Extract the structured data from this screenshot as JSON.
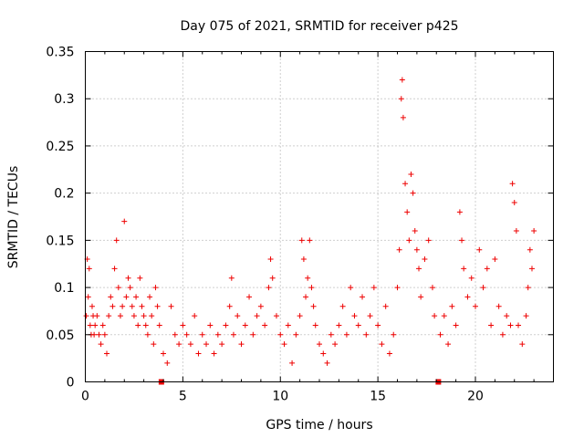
{
  "chart_data": {
    "type": "scatter",
    "title": "Day 075 of 2021, SRMTID for receiver p425",
    "xlabel": "GPS time / hours",
    "ylabel": "SRMTID / TECUs",
    "xlim": [
      0,
      24
    ],
    "ylim": [
      0,
      0.35
    ],
    "x_ticks": [
      0,
      5,
      10,
      15,
      20
    ],
    "x_tick_labels": [
      "0",
      "5",
      "10",
      "15",
      "20"
    ],
    "y_ticks": [
      0,
      0.05,
      0.1,
      0.15,
      0.2,
      0.25,
      0.3,
      0.35
    ],
    "y_tick_labels": [
      "0",
      "0.05",
      "0.1",
      "0.15",
      "0.2",
      "0.25",
      "0.3",
      "0.35"
    ],
    "grid": true,
    "marker": "plus",
    "color": "#ee0000",
    "data_gap_markers": [
      3.9,
      18.1
    ],
    "series": [
      {
        "name": "p425",
        "points": [
          [
            0.05,
            0.07
          ],
          [
            0.1,
            0.13
          ],
          [
            0.15,
            0.09
          ],
          [
            0.2,
            0.12
          ],
          [
            0.25,
            0.06
          ],
          [
            0.3,
            0.05
          ],
          [
            0.35,
            0.08
          ],
          [
            0.4,
            0.07
          ],
          [
            0.45,
            0.05
          ],
          [
            0.5,
            0.06
          ],
          [
            0.6,
            0.07
          ],
          [
            0.7,
            0.05
          ],
          [
            0.8,
            0.04
          ],
          [
            0.9,
            0.06
          ],
          [
            1.0,
            0.05
          ],
          [
            1.1,
            0.03
          ],
          [
            1.2,
            0.07
          ],
          [
            1.3,
            0.09
          ],
          [
            1.4,
            0.08
          ],
          [
            1.5,
            0.12
          ],
          [
            1.6,
            0.15
          ],
          [
            1.7,
            0.1
          ],
          [
            1.8,
            0.07
          ],
          [
            1.9,
            0.08
          ],
          [
            2.0,
            0.17
          ],
          [
            2.1,
            0.09
          ],
          [
            2.2,
            0.11
          ],
          [
            2.3,
            0.1
          ],
          [
            2.4,
            0.08
          ],
          [
            2.5,
            0.07
          ],
          [
            2.6,
            0.09
          ],
          [
            2.7,
            0.06
          ],
          [
            2.8,
            0.11
          ],
          [
            2.9,
            0.08
          ],
          [
            3.0,
            0.07
          ],
          [
            3.1,
            0.06
          ],
          [
            3.2,
            0.05
          ],
          [
            3.3,
            0.09
          ],
          [
            3.4,
            0.07
          ],
          [
            3.5,
            0.04
          ],
          [
            3.6,
            0.1
          ],
          [
            3.7,
            0.08
          ],
          [
            3.8,
            0.06
          ],
          [
            4.0,
            0.03
          ],
          [
            4.2,
            0.02
          ],
          [
            4.4,
            0.08
          ],
          [
            4.6,
            0.05
          ],
          [
            4.8,
            0.04
          ],
          [
            5.0,
            0.06
          ],
          [
            5.2,
            0.05
          ],
          [
            5.4,
            0.04
          ],
          [
            5.6,
            0.07
          ],
          [
            5.8,
            0.03
          ],
          [
            6.0,
            0.05
          ],
          [
            6.2,
            0.04
          ],
          [
            6.4,
            0.06
          ],
          [
            6.6,
            0.03
          ],
          [
            6.8,
            0.05
          ],
          [
            7.0,
            0.04
          ],
          [
            7.2,
            0.06
          ],
          [
            7.4,
            0.08
          ],
          [
            7.5,
            0.11
          ],
          [
            7.6,
            0.05
          ],
          [
            7.8,
            0.07
          ],
          [
            8.0,
            0.04
          ],
          [
            8.2,
            0.06
          ],
          [
            8.4,
            0.09
          ],
          [
            8.6,
            0.05
          ],
          [
            8.8,
            0.07
          ],
          [
            9.0,
            0.08
          ],
          [
            9.2,
            0.06
          ],
          [
            9.4,
            0.1
          ],
          [
            9.5,
            0.13
          ],
          [
            9.6,
            0.11
          ],
          [
            9.8,
            0.07
          ],
          [
            10.0,
            0.05
          ],
          [
            10.2,
            0.04
          ],
          [
            10.4,
            0.06
          ],
          [
            10.6,
            0.02
          ],
          [
            10.8,
            0.05
          ],
          [
            11.0,
            0.07
          ],
          [
            11.1,
            0.15
          ],
          [
            11.2,
            0.13
          ],
          [
            11.3,
            0.09
          ],
          [
            11.4,
            0.11
          ],
          [
            11.5,
            0.15
          ],
          [
            11.6,
            0.1
          ],
          [
            11.7,
            0.08
          ],
          [
            11.8,
            0.06
          ],
          [
            12.0,
            0.04
          ],
          [
            12.2,
            0.03
          ],
          [
            12.4,
            0.02
          ],
          [
            12.6,
            0.05
          ],
          [
            12.8,
            0.04
          ],
          [
            13.0,
            0.06
          ],
          [
            13.2,
            0.08
          ],
          [
            13.4,
            0.05
          ],
          [
            13.6,
            0.1
          ],
          [
            13.8,
            0.07
          ],
          [
            14.0,
            0.06
          ],
          [
            14.2,
            0.09
          ],
          [
            14.4,
            0.05
          ],
          [
            14.6,
            0.07
          ],
          [
            14.8,
            0.1
          ],
          [
            15.0,
            0.06
          ],
          [
            15.2,
            0.04
          ],
          [
            15.4,
            0.08
          ],
          [
            15.6,
            0.03
          ],
          [
            15.8,
            0.05
          ],
          [
            16.0,
            0.1
          ],
          [
            16.1,
            0.14
          ],
          [
            16.2,
            0.3
          ],
          [
            16.25,
            0.32
          ],
          [
            16.3,
            0.28
          ],
          [
            16.4,
            0.21
          ],
          [
            16.5,
            0.18
          ],
          [
            16.6,
            0.15
          ],
          [
            16.7,
            0.22
          ],
          [
            16.8,
            0.2
          ],
          [
            16.9,
            0.16
          ],
          [
            17.0,
            0.14
          ],
          [
            17.1,
            0.12
          ],
          [
            17.2,
            0.09
          ],
          [
            17.4,
            0.13
          ],
          [
            17.6,
            0.15
          ],
          [
            17.8,
            0.1
          ],
          [
            17.9,
            0.07
          ],
          [
            18.2,
            0.05
          ],
          [
            18.4,
            0.07
          ],
          [
            18.6,
            0.04
          ],
          [
            18.8,
            0.08
          ],
          [
            19.0,
            0.06
          ],
          [
            19.2,
            0.18
          ],
          [
            19.3,
            0.15
          ],
          [
            19.4,
            0.12
          ],
          [
            19.6,
            0.09
          ],
          [
            19.8,
            0.11
          ],
          [
            20.0,
            0.08
          ],
          [
            20.2,
            0.14
          ],
          [
            20.4,
            0.1
          ],
          [
            20.6,
            0.12
          ],
          [
            20.8,
            0.06
          ],
          [
            21.0,
            0.13
          ],
          [
            21.2,
            0.08
          ],
          [
            21.4,
            0.05
          ],
          [
            21.6,
            0.07
          ],
          [
            21.8,
            0.06
          ],
          [
            21.9,
            0.21
          ],
          [
            22.0,
            0.19
          ],
          [
            22.1,
            0.16
          ],
          [
            22.2,
            0.06
          ],
          [
            22.4,
            0.04
          ],
          [
            22.6,
            0.07
          ],
          [
            22.7,
            0.1
          ],
          [
            22.8,
            0.14
          ],
          [
            22.9,
            0.12
          ],
          [
            23.0,
            0.16
          ]
        ]
      }
    ]
  }
}
